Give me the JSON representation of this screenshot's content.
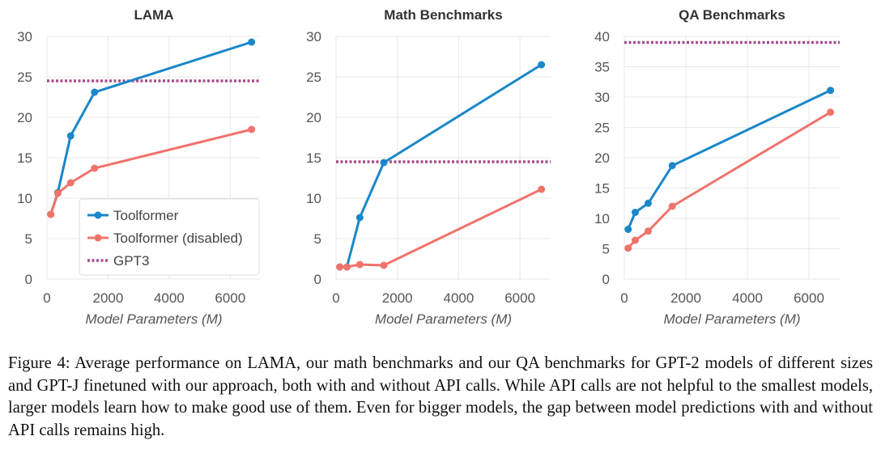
{
  "chart_data": [
    {
      "type": "line",
      "title": "LAMA",
      "xlabel": "Model Parameters (M)",
      "ylabel": "",
      "xlim": [
        0,
        7000
      ],
      "ylim": [
        0,
        30
      ],
      "xticks": [
        0,
        2000,
        4000,
        6000
      ],
      "yticks": [
        0,
        5,
        10,
        15,
        20,
        25,
        30
      ],
      "legend_position": "lower-right",
      "series": [
        {
          "name": "Toolformer",
          "color": "#1a87c8",
          "x": [
            124,
            355,
            775,
            1558,
            6700
          ],
          "y": [
            8.0,
            10.7,
            17.7,
            23.1,
            29.3
          ]
        },
        {
          "name": "Toolformer (disabled)",
          "color": "#f0736b",
          "x": [
            124,
            355,
            775,
            1558,
            6700
          ],
          "y": [
            8.0,
            10.6,
            11.9,
            13.7,
            18.5
          ]
        },
        {
          "name": "GPT3",
          "color": "#a64d8a",
          "style": "dotted",
          "x": [
            0,
            7000
          ],
          "y": [
            24.5,
            24.5
          ]
        }
      ]
    },
    {
      "type": "line",
      "title": "Math Benchmarks",
      "xlabel": "Model Parameters (M)",
      "ylabel": "",
      "xlim": [
        0,
        7000
      ],
      "ylim": [
        0,
        30
      ],
      "xticks": [
        0,
        2000,
        4000,
        6000
      ],
      "yticks": [
        0,
        5,
        10,
        15,
        20,
        25,
        30
      ],
      "series": [
        {
          "name": "Toolformer",
          "color": "#1a87c8",
          "x": [
            124,
            355,
            775,
            1558,
            6700
          ],
          "y": [
            1.5,
            1.5,
            7.6,
            14.4,
            26.5
          ]
        },
        {
          "name": "Toolformer (disabled)",
          "color": "#f0736b",
          "x": [
            124,
            355,
            775,
            1558,
            6700
          ],
          "y": [
            1.5,
            1.5,
            1.8,
            1.7,
            11.1
          ]
        },
        {
          "name": "GPT3",
          "color": "#a64d8a",
          "style": "dotted",
          "x": [
            0,
            7000
          ],
          "y": [
            14.5,
            14.5
          ]
        }
      ]
    },
    {
      "type": "line",
      "title": "QA Benchmarks",
      "xlabel": "Model Parameters (M)",
      "ylabel": "",
      "xlim": [
        0,
        7000
      ],
      "ylim": [
        0,
        40
      ],
      "xticks": [
        0,
        2000,
        4000,
        6000
      ],
      "yticks": [
        0,
        5,
        10,
        15,
        20,
        25,
        30,
        35,
        40
      ],
      "series": [
        {
          "name": "Toolformer",
          "color": "#1a87c8",
          "x": [
            124,
            355,
            775,
            1558,
            6700
          ],
          "y": [
            8.2,
            11.0,
            12.5,
            18.7,
            31.1
          ]
        },
        {
          "name": "Toolformer (disabled)",
          "color": "#f0736b",
          "x": [
            124,
            355,
            775,
            1558,
            6700
          ],
          "y": [
            5.1,
            6.4,
            7.9,
            12.0,
            27.5
          ]
        },
        {
          "name": "GPT3",
          "color": "#a64d8a",
          "style": "dotted",
          "x": [
            0,
            7000
          ],
          "y": [
            39.0,
            39.0
          ]
        }
      ]
    }
  ],
  "caption": "Figure 4: Average performance on LAMA, our math benchmarks and our QA benchmarks for GPT-2 models of different sizes and GPT-J finetuned with our approach, both with and without API calls. While API calls are not helpful to the smallest models, larger models learn how to make good use of them. Even for bigger models, the gap between model predictions with and without API calls remains high."
}
